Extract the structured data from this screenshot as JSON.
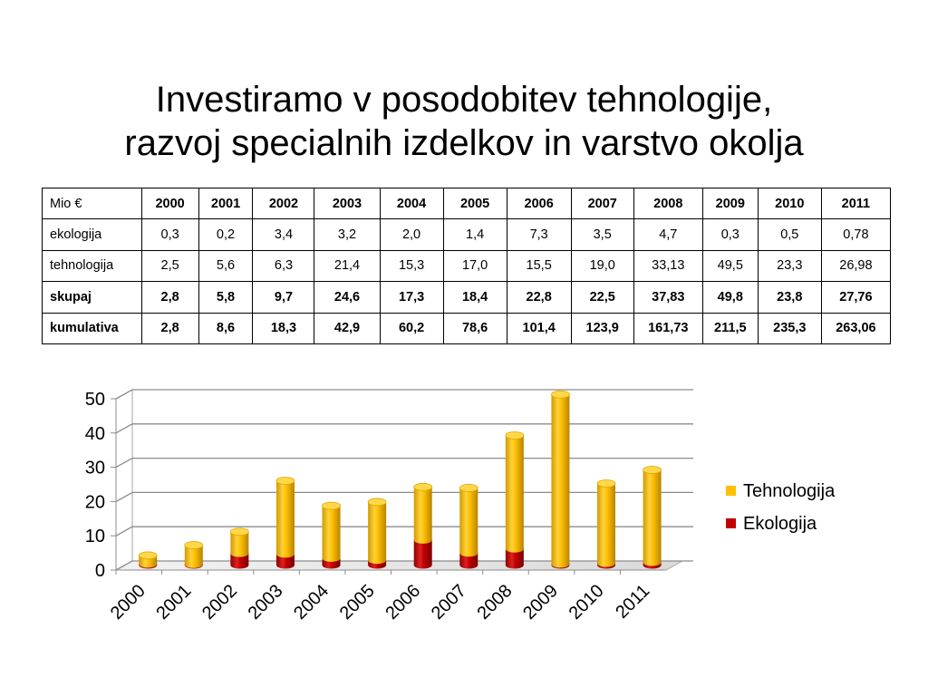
{
  "title": {
    "line1": "Investiramo v posodobitev tehnologije,",
    "line2": "razvoj specialnih izdelkov in varstvo okolja"
  },
  "table": {
    "header": [
      "Mio €",
      "2000",
      "2001",
      "2002",
      "2003",
      "2004",
      "2005",
      "2006",
      "2007",
      "2008",
      "2009",
      "2010",
      "2011"
    ],
    "rows": [
      {
        "label": "ekologija",
        "bold": false,
        "values": [
          "0,3",
          "0,2",
          "3,4",
          "3,2",
          "2,0",
          "1,4",
          "7,3",
          "3,5",
          "4,7",
          "0,3",
          "0,5",
          "0,78"
        ]
      },
      {
        "label": "tehnologija",
        "bold": false,
        "values": [
          "2,5",
          "5,6",
          "6,3",
          "21,4",
          "15,3",
          "17,0",
          "15,5",
          "19,0",
          "33,13",
          "49,5",
          "23,3",
          "26,98"
        ]
      },
      {
        "label": "skupaj",
        "bold": true,
        "values": [
          "2,8",
          "5,8",
          "9,7",
          "24,6",
          "17,3",
          "18,4",
          "22,8",
          "22,5",
          "37,83",
          "49,8",
          "23,8",
          "27,76"
        ]
      },
      {
        "label": "kumulativa",
        "bold": true,
        "values": [
          "2,8",
          "8,6",
          "18,3",
          "42,9",
          "60,2",
          "78,6",
          "101,4",
          "123,9",
          "161,73",
          "211,5",
          "235,3",
          "263,06"
        ]
      }
    ]
  },
  "chart_data": {
    "type": "bar",
    "stacked": true,
    "style": "3d-cylinder",
    "categories": [
      "2000",
      "2001",
      "2002",
      "2003",
      "2004",
      "2005",
      "2006",
      "2007",
      "2008",
      "2009",
      "2010",
      "2011"
    ],
    "series": [
      {
        "name": "Ekologija",
        "color": "#c00000",
        "values": [
          0.3,
          0.2,
          3.4,
          3.2,
          2.0,
          1.4,
          7.3,
          3.5,
          4.7,
          0.3,
          0.5,
          0.78
        ]
      },
      {
        "name": "Tehnologija",
        "color": "#ffc000",
        "values": [
          2.5,
          5.6,
          6.3,
          21.4,
          15.3,
          17.0,
          15.5,
          19.0,
          33.13,
          49.5,
          23.3,
          26.98
        ]
      }
    ],
    "legend": {
      "position": "right",
      "entries": [
        {
          "name": "Tehnologija",
          "color": "#ffc000"
        },
        {
          "name": "Ekologija",
          "color": "#c00000"
        }
      ]
    },
    "ylim": [
      0,
      50
    ],
    "yticks": [
      0,
      10,
      20,
      30,
      40,
      50
    ],
    "grid": true
  }
}
